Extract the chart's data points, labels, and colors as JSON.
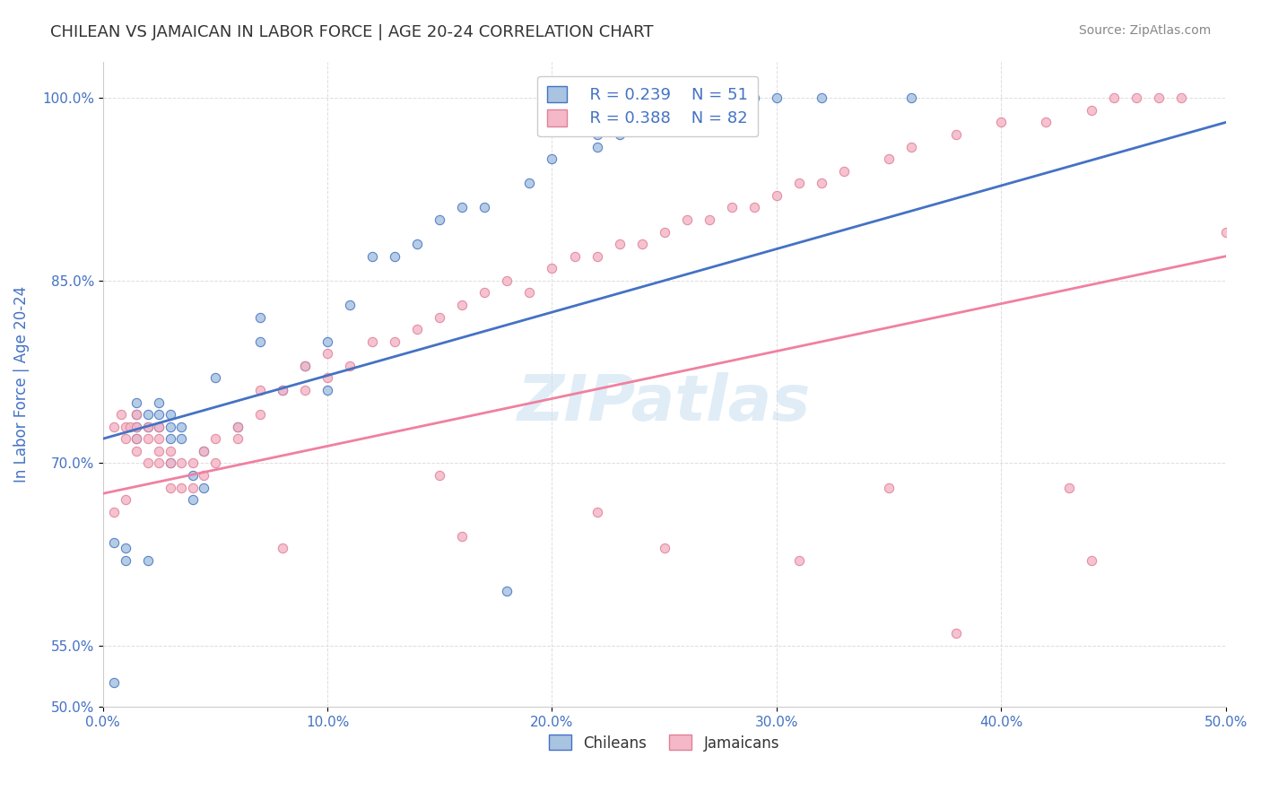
{
  "title": "CHILEAN VS JAMAICAN IN LABOR FORCE | AGE 20-24 CORRELATION CHART",
  "source_text": "Source: ZipAtlas.com",
  "xlabel": "",
  "ylabel": "In Labor Force | Age 20-24",
  "xlim": [
    0.0,
    0.5
  ],
  "ylim": [
    0.5,
    1.03
  ],
  "ytick_labels": [
    "50.0%",
    "55.0%",
    "70.0%",
    "85.0%",
    "100.0%"
  ],
  "ytick_vals": [
    0.5,
    0.55,
    0.7,
    0.85,
    1.0
  ],
  "xtick_labels": [
    "0.0%",
    "10.0%",
    "20.0%",
    "30.0%",
    "40.0%",
    "50.0%"
  ],
  "xtick_vals": [
    0.0,
    0.1,
    0.2,
    0.3,
    0.4,
    0.5
  ],
  "chilean_color": "#a8c4e0",
  "jamaican_color": "#f4b8c8",
  "chilean_line_color": "#4472c4",
  "jamaican_line_color": "#f4a0b8",
  "legend_r_chilean": "R = 0.239",
  "legend_n_chilean": "N = 51",
  "legend_r_jamaican": "R = 0.388",
  "legend_n_jamaican": "N = 82",
  "watermark_text": "ZIPatlas",
  "chilean_scatter_x": [
    0.005,
    0.01,
    0.01,
    0.015,
    0.015,
    0.015,
    0.015,
    0.02,
    0.02,
    0.02,
    0.025,
    0.025,
    0.025,
    0.03,
    0.03,
    0.03,
    0.03,
    0.035,
    0.035,
    0.04,
    0.04,
    0.045,
    0.045,
    0.05,
    0.06,
    0.07,
    0.07,
    0.08,
    0.09,
    0.1,
    0.1,
    0.11,
    0.12,
    0.13,
    0.14,
    0.15,
    0.16,
    0.17,
    0.19,
    0.2,
    0.22,
    0.22,
    0.23,
    0.25,
    0.26,
    0.29,
    0.3,
    0.32,
    0.36,
    0.005,
    0.18
  ],
  "chilean_scatter_y": [
    0.635,
    0.62,
    0.63,
    0.72,
    0.73,
    0.74,
    0.75,
    0.62,
    0.73,
    0.74,
    0.73,
    0.74,
    0.75,
    0.7,
    0.72,
    0.73,
    0.74,
    0.72,
    0.73,
    0.67,
    0.69,
    0.68,
    0.71,
    0.77,
    0.73,
    0.8,
    0.82,
    0.76,
    0.78,
    0.76,
    0.8,
    0.83,
    0.87,
    0.87,
    0.88,
    0.9,
    0.91,
    0.91,
    0.93,
    0.95,
    0.96,
    0.97,
    0.97,
    0.98,
    0.99,
    1.0,
    1.0,
    1.0,
    1.0,
    0.52,
    0.595
  ],
  "jamaican_scatter_x": [
    0.005,
    0.008,
    0.01,
    0.01,
    0.012,
    0.015,
    0.015,
    0.015,
    0.015,
    0.02,
    0.02,
    0.02,
    0.025,
    0.025,
    0.025,
    0.025,
    0.03,
    0.03,
    0.03,
    0.035,
    0.035,
    0.04,
    0.04,
    0.045,
    0.045,
    0.05,
    0.05,
    0.06,
    0.06,
    0.07,
    0.07,
    0.08,
    0.09,
    0.09,
    0.1,
    0.1,
    0.11,
    0.12,
    0.13,
    0.14,
    0.15,
    0.16,
    0.17,
    0.18,
    0.19,
    0.2,
    0.21,
    0.22,
    0.23,
    0.24,
    0.25,
    0.26,
    0.27,
    0.28,
    0.29,
    0.3,
    0.31,
    0.32,
    0.33,
    0.35,
    0.36,
    0.38,
    0.4,
    0.42,
    0.44,
    0.45,
    0.46,
    0.47,
    0.48,
    0.005,
    0.01,
    0.15,
    0.22,
    0.35,
    0.38,
    0.43,
    0.25,
    0.16,
    0.08,
    0.31,
    0.44,
    0.5
  ],
  "jamaican_scatter_y": [
    0.73,
    0.74,
    0.72,
    0.73,
    0.73,
    0.71,
    0.72,
    0.73,
    0.74,
    0.7,
    0.72,
    0.73,
    0.7,
    0.71,
    0.72,
    0.73,
    0.68,
    0.7,
    0.71,
    0.68,
    0.7,
    0.68,
    0.7,
    0.69,
    0.71,
    0.7,
    0.72,
    0.72,
    0.73,
    0.74,
    0.76,
    0.76,
    0.76,
    0.78,
    0.77,
    0.79,
    0.78,
    0.8,
    0.8,
    0.81,
    0.82,
    0.83,
    0.84,
    0.85,
    0.84,
    0.86,
    0.87,
    0.87,
    0.88,
    0.88,
    0.89,
    0.9,
    0.9,
    0.91,
    0.91,
    0.92,
    0.93,
    0.93,
    0.94,
    0.95,
    0.96,
    0.97,
    0.98,
    0.98,
    0.99,
    1.0,
    1.0,
    1.0,
    1.0,
    0.66,
    0.67,
    0.69,
    0.66,
    0.68,
    0.56,
    0.68,
    0.63,
    0.64,
    0.63,
    0.62,
    0.62,
    0.89
  ],
  "chilean_trend_x": [
    0.0,
    0.5
  ],
  "chilean_trend_y": [
    0.72,
    0.98
  ],
  "jamaican_trend_x": [
    0.0,
    0.5
  ],
  "jamaican_trend_y": [
    0.675,
    0.87
  ],
  "background_color": "#ffffff",
  "grid_color": "#dddddd",
  "title_color": "#333333",
  "axis_label_color": "#4472c4",
  "tick_label_color": "#4472c4"
}
